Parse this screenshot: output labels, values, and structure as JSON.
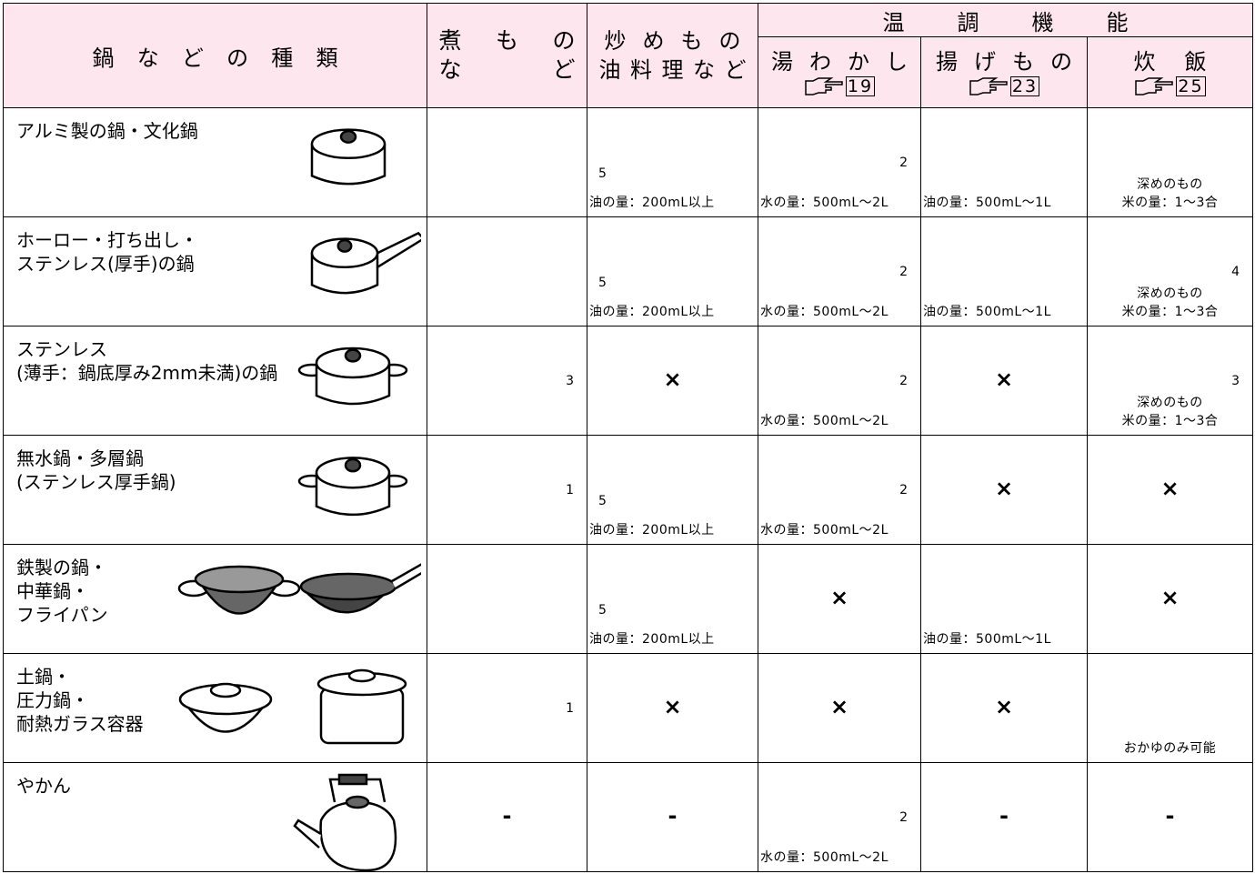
{
  "header": {
    "type_label": "鍋などの種類",
    "nimono": [
      "煮もの",
      "など"
    ],
    "itame": [
      "炒めもの",
      "油料理など"
    ],
    "ondo": "温調機能",
    "yuwakashi": {
      "label": "湯わかし",
      "ref": "19"
    },
    "agemono": {
      "label": "揚げもの",
      "ref": "23"
    },
    "suihan": {
      "label": "炊飯",
      "ref": "25"
    }
  },
  "rows": [
    {
      "name": [
        "アルミ製の鍋・文化鍋"
      ],
      "cells": [
        null,
        {
          "note": "5",
          "text": [
            "油の量：200mL以上"
          ]
        },
        {
          "note": "2",
          "text": [
            "水の量：500mL～2L"
          ]
        },
        {
          "text": [
            "油の量：500mL～1L"
          ]
        },
        {
          "text": [
            "深めのもの",
            "米の量：1～3合"
          ]
        }
      ]
    },
    {
      "name": [
        "ホーロー・打ち出し・",
        "ステンレス(厚手)の鍋"
      ],
      "cells": [
        null,
        {
          "note": "5",
          "text": [
            "油の量：200mL以上"
          ]
        },
        {
          "note": "2",
          "text": [
            "水の量：500mL～2L"
          ]
        },
        {
          "text": [
            "油の量：500mL～1L"
          ]
        },
        {
          "note": "4",
          "text": [
            "深めのもの",
            "米の量：1～3合"
          ]
        }
      ]
    },
    {
      "name": [
        "ステンレス",
        "(薄手：鍋底厚み2mm未満)の鍋"
      ],
      "cells": [
        {
          "note": "3"
        },
        {
          "mark": "×"
        },
        {
          "note": "2",
          "text": [
            "水の量：500mL～2L"
          ]
        },
        {
          "mark": "×"
        },
        {
          "note": "3",
          "text": [
            "深めのもの",
            "米の量：1～3合"
          ]
        }
      ]
    },
    {
      "name": [
        "無水鍋・多層鍋",
        "(ステンレス厚手鍋)"
      ],
      "cells": [
        {
          "note": "1"
        },
        {
          "note": "5",
          "text": [
            "油の量：200mL以上"
          ]
        },
        {
          "note": "2",
          "text": [
            "水の量：500mL～2L"
          ]
        },
        {
          "mark": "×"
        },
        {
          "mark": "×"
        }
      ]
    },
    {
      "name": [
        "鉄製の鍋・",
        "中華鍋・",
        "フライパン"
      ],
      "cells": [
        null,
        {
          "note": "5",
          "text": [
            "油の量：200mL以上"
          ]
        },
        {
          "mark": "×"
        },
        {
          "text": [
            "油の量：500mL～1L"
          ]
        },
        {
          "mark": "×"
        }
      ]
    },
    {
      "name": [
        "土鍋・",
        "圧力鍋・",
        "耐熱ガラス容器"
      ],
      "cells": [
        {
          "note": "1"
        },
        {
          "mark": "×"
        },
        {
          "mark": "×"
        },
        {
          "mark": "×"
        },
        {
          "text": [
            "おかゆのみ可能"
          ]
        }
      ]
    },
    {
      "name": [
        "やかん"
      ],
      "cells": [
        {
          "mark": "-"
        },
        {
          "mark": "-"
        },
        {
          "note": "2",
          "text": [
            "水の量：500mL～2L"
          ]
        },
        {
          "mark": "-"
        },
        {
          "mark": "-"
        }
      ]
    }
  ]
}
